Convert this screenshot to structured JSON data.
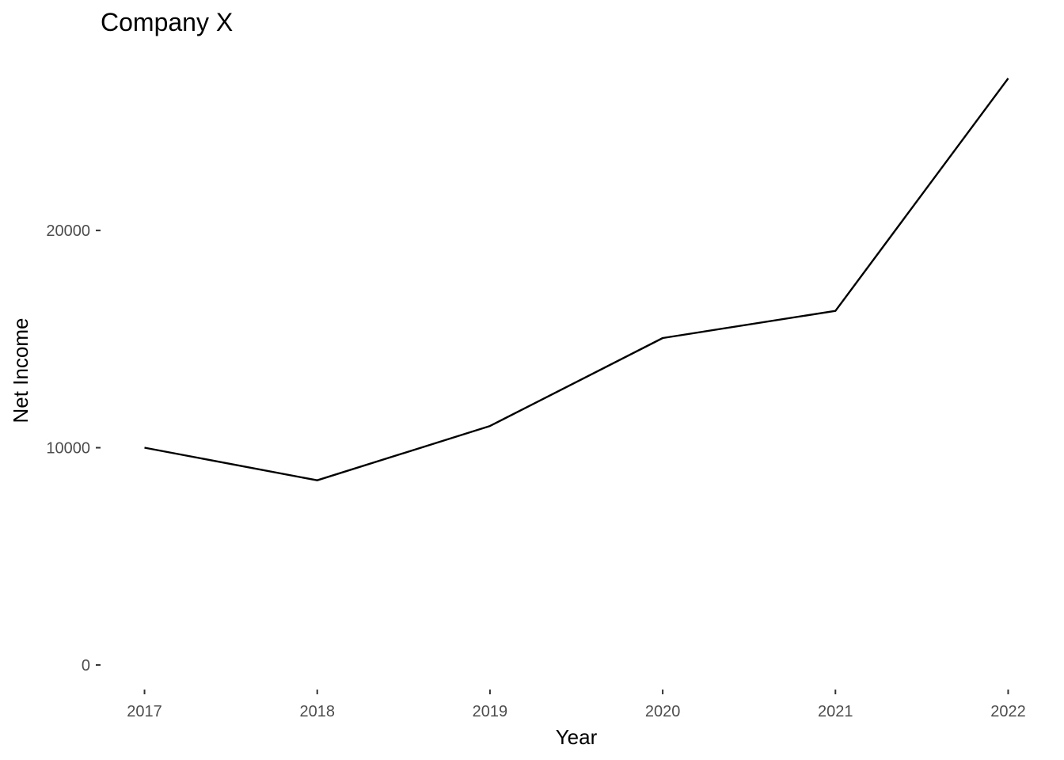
{
  "chart_data": {
    "type": "line",
    "title": "Company X",
    "xlabel": "Year",
    "ylabel": "Net Income",
    "x": [
      2017,
      2018,
      2019,
      2020,
      2021,
      2022
    ],
    "series": [
      {
        "values": [
          10000,
          8500,
          11000,
          15050,
          16300,
          27000
        ]
      }
    ],
    "xticks": [
      "2017",
      "2018",
      "2019",
      "2020",
      "2021",
      "2022"
    ],
    "yticks": [
      0,
      10000,
      20000
    ],
    "ytick_labels": [
      "0",
      "10000",
      "20000"
    ],
    "ylim": [
      -1350,
      28350
    ],
    "xlim": [
      2016.75,
      2022.25
    ],
    "grid": false,
    "legend": "none",
    "colors": {
      "line": "#000000",
      "tick_text": "#4d4d4d",
      "tick_mark": "#333333"
    }
  }
}
